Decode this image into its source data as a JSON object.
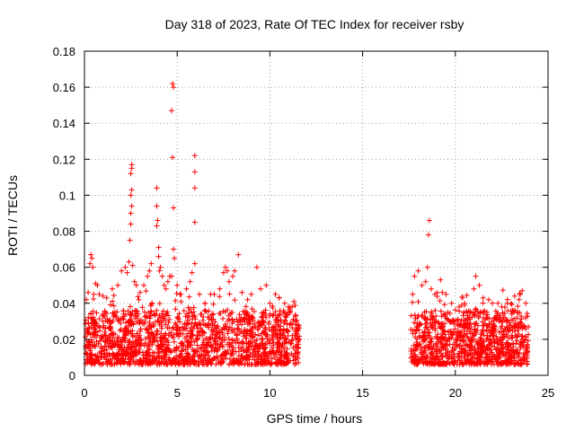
{
  "chart_data": {
    "type": "scatter",
    "title": "Day 318 of 2023, Rate Of TEC Index for receiver rsby",
    "xlabel": "GPS time / hours",
    "ylabel": "ROTI / TECUs",
    "xlim": [
      0,
      25
    ],
    "ylim": [
      0,
      0.18
    ],
    "xticks": [
      0,
      5,
      10,
      15,
      20,
      25
    ],
    "xtick_labels": [
      "0",
      "5",
      "10",
      "15",
      "20",
      "25"
    ],
    "yticks": [
      0,
      0.02,
      0.04,
      0.06,
      0.08,
      0.1,
      0.12,
      0.14,
      0.16,
      0.18
    ],
    "ytick_labels": [
      "0",
      "0.02",
      "0.04",
      "0.06",
      "0.08",
      "0.1",
      "0.12",
      "0.14",
      "0.16",
      "0.18"
    ],
    "grid": true,
    "marker": "+",
    "color": "#ff0000",
    "series": [
      {
        "name": "ROTI",
        "data_gap_hours": [
          11.6,
          17.6
        ],
        "points": [
          [
            0.1,
            0.042
          ],
          [
            0.2,
            0.046
          ],
          [
            0.3,
            0.062
          ],
          [
            0.35,
            0.067
          ],
          [
            0.4,
            0.065
          ],
          [
            0.45,
            0.06
          ],
          [
            0.5,
            0.045
          ],
          [
            0.6,
            0.051
          ],
          [
            0.7,
            0.05
          ],
          [
            0.8,
            0.045
          ],
          [
            1.0,
            0.044
          ],
          [
            1.2,
            0.043
          ],
          [
            1.5,
            0.048
          ],
          [
            1.8,
            0.05
          ],
          [
            2.0,
            0.058
          ],
          [
            2.2,
            0.06
          ],
          [
            2.3,
            0.057
          ],
          [
            2.4,
            0.063
          ],
          [
            2.45,
            0.075
          ],
          [
            2.5,
            0.084
          ],
          [
            2.5,
            0.09
          ],
          [
            2.55,
            0.094
          ],
          [
            2.5,
            0.1
          ],
          [
            2.55,
            0.103
          ],
          [
            2.5,
            0.112
          ],
          [
            2.55,
            0.115
          ],
          [
            2.55,
            0.117
          ],
          [
            2.6,
            0.061
          ],
          [
            2.7,
            0.052
          ],
          [
            2.8,
            0.05
          ],
          [
            3.0,
            0.046
          ],
          [
            3.2,
            0.05
          ],
          [
            3.4,
            0.055
          ],
          [
            3.5,
            0.058
          ],
          [
            3.6,
            0.062
          ],
          [
            3.9,
            0.104
          ],
          [
            3.9,
            0.094
          ],
          [
            3.95,
            0.086
          ],
          [
            3.9,
            0.083
          ],
          [
            4.0,
            0.071
          ],
          [
            4.0,
            0.066
          ],
          [
            4.05,
            0.058
          ],
          [
            4.1,
            0.06
          ],
          [
            4.2,
            0.055
          ],
          [
            4.3,
            0.05
          ],
          [
            4.4,
            0.048
          ],
          [
            4.5,
            0.052
          ],
          [
            4.6,
            0.055
          ],
          [
            4.7,
            0.055
          ],
          [
            4.75,
            0.162
          ],
          [
            4.8,
            0.16
          ],
          [
            4.7,
            0.147
          ],
          [
            4.75,
            0.121
          ],
          [
            4.8,
            0.093
          ],
          [
            4.8,
            0.07
          ],
          [
            4.85,
            0.065
          ],
          [
            5.0,
            0.05
          ],
          [
            5.2,
            0.045
          ],
          [
            5.5,
            0.048
          ],
          [
            5.7,
            0.052
          ],
          [
            5.8,
            0.057
          ],
          [
            5.95,
            0.122
          ],
          [
            5.95,
            0.113
          ],
          [
            5.95,
            0.104
          ],
          [
            5.95,
            0.085
          ],
          [
            5.95,
            0.062
          ],
          [
            6.2,
            0.045
          ],
          [
            6.5,
            0.04
          ],
          [
            6.8,
            0.045
          ],
          [
            7.0,
            0.045
          ],
          [
            7.3,
            0.048
          ],
          [
            7.5,
            0.057
          ],
          [
            7.6,
            0.06
          ],
          [
            7.7,
            0.058
          ],
          [
            7.8,
            0.052
          ],
          [
            8.0,
            0.055
          ],
          [
            8.1,
            0.058
          ],
          [
            8.3,
            0.067
          ],
          [
            8.5,
            0.046
          ],
          [
            8.8,
            0.042
          ],
          [
            9.0,
            0.045
          ],
          [
            9.3,
            0.06
          ],
          [
            9.5,
            0.048
          ],
          [
            9.8,
            0.05
          ],
          [
            10.0,
            0.04
          ],
          [
            10.3,
            0.045
          ],
          [
            10.5,
            0.043
          ],
          [
            10.8,
            0.04
          ],
          [
            11.0,
            0.038
          ],
          [
            11.2,
            0.038
          ],
          [
            11.4,
            0.03
          ],
          [
            17.7,
            0.045
          ],
          [
            17.8,
            0.055
          ],
          [
            18.0,
            0.058
          ],
          [
            18.2,
            0.05
          ],
          [
            18.4,
            0.052
          ],
          [
            18.5,
            0.06
          ],
          [
            18.55,
            0.078
          ],
          [
            18.6,
            0.086
          ],
          [
            18.7,
            0.048
          ],
          [
            18.9,
            0.045
          ],
          [
            19.2,
            0.053
          ],
          [
            19.3,
            0.046
          ],
          [
            19.5,
            0.045
          ],
          [
            19.8,
            0.04
          ],
          [
            20.2,
            0.038
          ],
          [
            20.5,
            0.04
          ],
          [
            21.0,
            0.048
          ],
          [
            21.1,
            0.055
          ],
          [
            21.3,
            0.05
          ],
          [
            21.5,
            0.043
          ],
          [
            21.8,
            0.042
          ],
          [
            22.0,
            0.04
          ],
          [
            22.3,
            0.04
          ],
          [
            22.5,
            0.038
          ],
          [
            22.8,
            0.04
          ],
          [
            23.0,
            0.04
          ],
          [
            23.2,
            0.044
          ],
          [
            23.5,
            0.045
          ],
          [
            23.6,
            0.047
          ],
          [
            23.8,
            0.04
          ]
        ]
      }
    ]
  }
}
